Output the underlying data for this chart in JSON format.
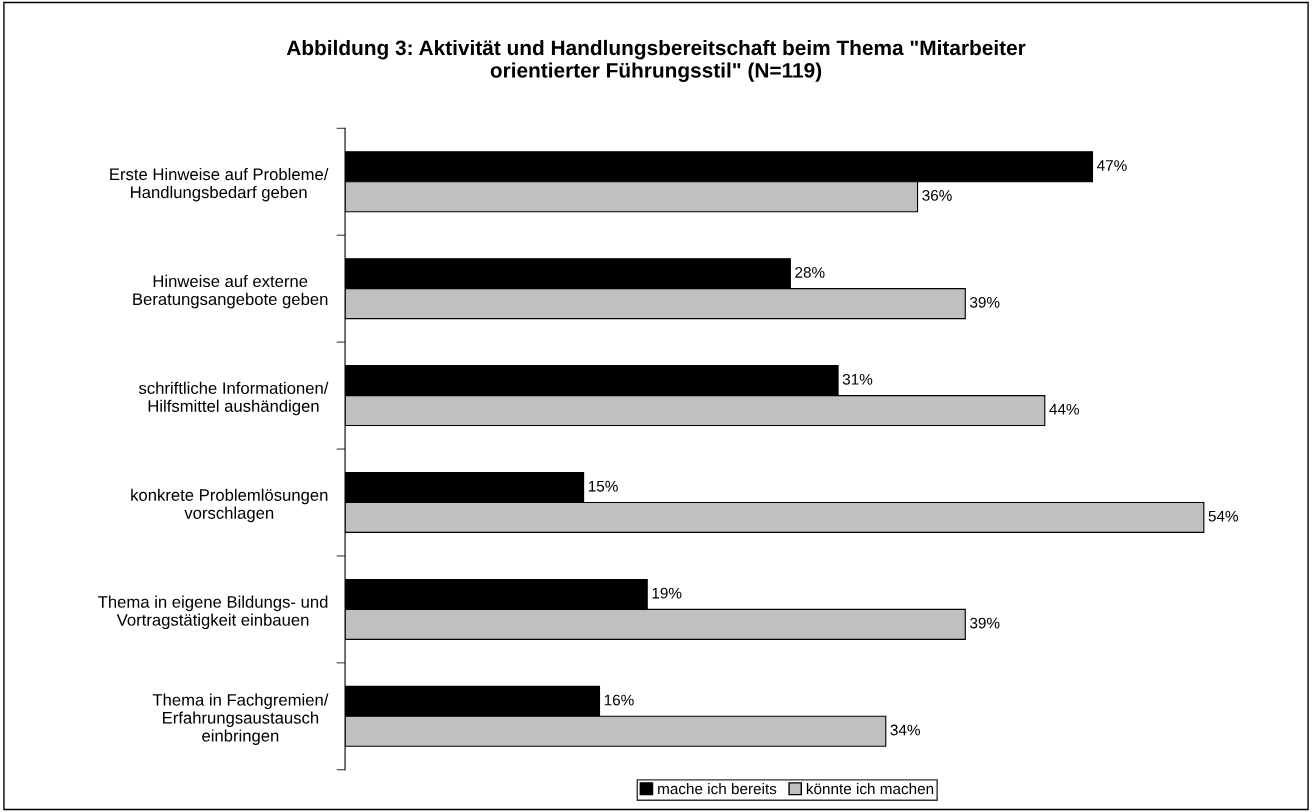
{
  "chart_data": {
    "type": "bar",
    "orientation": "horizontal",
    "title": "Abbildung 3: Aktivität und Handlungsbereitschaft beim Thema \"Mitarbeiter orientierter Führungsstil\" (N=119)",
    "categories": [
      "Erste Hinweise auf Probleme/\nHandlungsbedarf geben",
      "Hinweise auf externe\nBeratungsangebote geben",
      "schriftliche Informationen/\nHilfsmittel aushändigen",
      "konkrete Problemlösungen\nvorschlagen",
      "Thema in eigene Bildungs- und\nVortragstätigkeit einbauen",
      "Thema in Fachgremien/\nErfahrungsaustausch\neinbringen"
    ],
    "series": [
      {
        "name": "mache ich bereits",
        "color": "#000000",
        "values": [
          47,
          28,
          31,
          15,
          19,
          16
        ],
        "value_labels": [
          "47%",
          "28%",
          "31%",
          "15%",
          "19%",
          "16%"
        ]
      },
      {
        "name": "könnte ich machen",
        "color": "#c0c0c0",
        "values": [
          36,
          39,
          44,
          54,
          39,
          34
        ],
        "value_labels": [
          "36%",
          "39%",
          "44%",
          "54%",
          "39%",
          "34%"
        ]
      }
    ],
    "legend": "bottom",
    "grid": false
  }
}
